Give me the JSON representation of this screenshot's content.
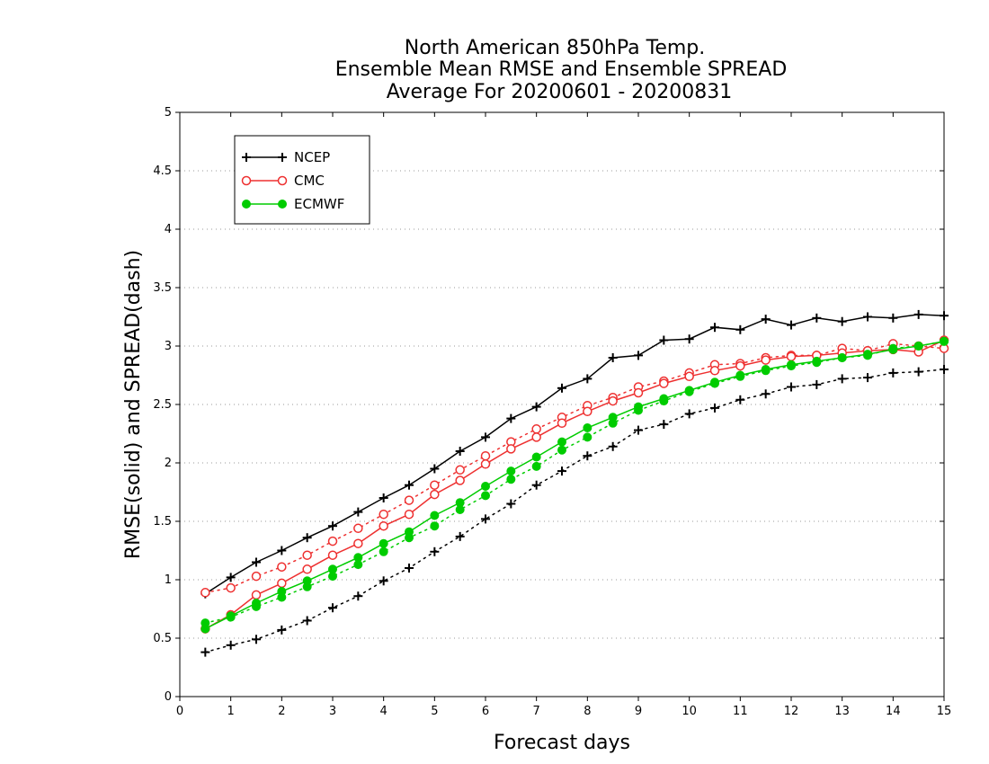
{
  "chart_data": {
    "type": "line",
    "title_lines": [
      "North American 850hPa Temp.",
      "Ensemble Mean RMSE and Ensemble SPREAD",
      "Average For 20200601 - 20200831"
    ],
    "xlabel": "Forecast days",
    "ylabel": "RMSE(solid) and SPREAD(dash)",
    "xlim": [
      0,
      15
    ],
    "ylim": [
      0,
      5
    ],
    "x_ticks": [
      "0",
      "1",
      "2",
      "3",
      "4",
      "5",
      "6",
      "7",
      "8",
      "9",
      "10",
      "11",
      "12",
      "13",
      "14",
      "15"
    ],
    "y_ticks": [
      "0",
      "0.5",
      "1",
      "1.5",
      "2",
      "2.5",
      "3",
      "3.5",
      "4",
      "4.5",
      "5"
    ],
    "grid": "horizontal dotted",
    "legend_position": "top-left",
    "x": [
      0.5,
      1,
      1.5,
      2,
      2.5,
      3,
      3.5,
      4,
      4.5,
      5,
      5.5,
      6,
      6.5,
      7,
      7.5,
      8,
      8.5,
      9,
      9.5,
      10,
      10.5,
      11,
      11.5,
      12,
      12.5,
      13,
      13.5,
      14,
      14.5,
      15
    ],
    "series": [
      {
        "name": "NCEP",
        "color": "#000000",
        "marker": "plus",
        "rmse": [
          0.88,
          1.02,
          1.15,
          1.25,
          1.36,
          1.46,
          1.58,
          1.7,
          1.81,
          1.95,
          2.1,
          2.22,
          2.38,
          2.48,
          2.64,
          2.72,
          2.9,
          2.92,
          3.05,
          3.06,
          3.16,
          3.14,
          3.23,
          3.18,
          3.24,
          3.21,
          3.25,
          3.24,
          3.27,
          3.26
        ],
        "spread": [
          0.38,
          0.44,
          0.49,
          0.57,
          0.65,
          0.76,
          0.86,
          0.99,
          1.1,
          1.24,
          1.37,
          1.52,
          1.65,
          1.81,
          1.93,
          2.06,
          2.14,
          2.28,
          2.33,
          2.42,
          2.47,
          2.54,
          2.59,
          2.65,
          2.67,
          2.72,
          2.73,
          2.77,
          2.78,
          2.8
        ]
      },
      {
        "name": "CMC",
        "color": "#ee3030",
        "marker": "open-circle",
        "rmse": [
          0.58,
          0.7,
          0.87,
          0.97,
          1.09,
          1.21,
          1.31,
          1.46,
          1.56,
          1.73,
          1.85,
          1.99,
          2.12,
          2.22,
          2.34,
          2.44,
          2.53,
          2.6,
          2.68,
          2.74,
          2.79,
          2.83,
          2.88,
          2.91,
          2.92,
          2.94,
          2.96,
          2.97,
          2.95,
          3.05
        ],
        "spread": [
          0.89,
          0.93,
          1.03,
          1.11,
          1.21,
          1.33,
          1.44,
          1.56,
          1.68,
          1.81,
          1.94,
          2.06,
          2.18,
          2.29,
          2.39,
          2.49,
          2.56,
          2.65,
          2.7,
          2.77,
          2.84,
          2.85,
          2.9,
          2.92,
          2.92,
          2.98,
          2.96,
          3.02,
          3.0,
          2.98
        ]
      },
      {
        "name": "ECMWF",
        "color": "#00cc00",
        "marker": "filled-circle",
        "rmse": [
          0.58,
          0.69,
          0.8,
          0.9,
          0.99,
          1.09,
          1.19,
          1.31,
          1.41,
          1.55,
          1.66,
          1.8,
          1.93,
          2.05,
          2.18,
          2.3,
          2.39,
          2.48,
          2.55,
          2.62,
          2.69,
          2.75,
          2.8,
          2.84,
          2.87,
          2.9,
          2.93,
          2.97,
          3.0,
          3.04
        ],
        "spread": [
          0.63,
          0.68,
          0.77,
          0.85,
          0.94,
          1.03,
          1.13,
          1.24,
          1.36,
          1.46,
          1.6,
          1.72,
          1.86,
          1.97,
          2.11,
          2.22,
          2.34,
          2.45,
          2.53,
          2.61,
          2.68,
          2.74,
          2.79,
          2.83,
          2.86,
          2.9,
          2.92,
          2.98,
          3.0,
          3.04
        ]
      }
    ]
  }
}
